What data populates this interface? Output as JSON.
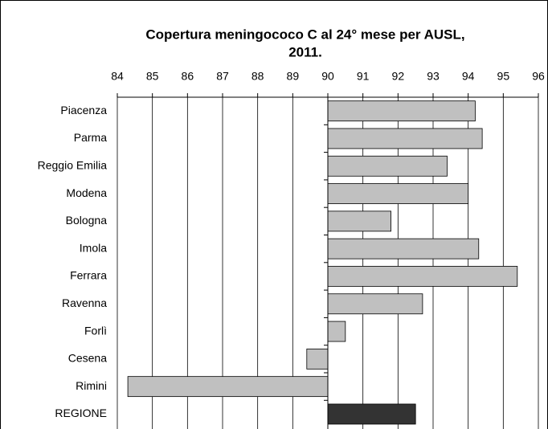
{
  "chart_data": {
    "type": "bar",
    "orientation": "horizontal",
    "title": [
      "Copertura meningococo C al 24° mese per AUSL,",
      "2011."
    ],
    "categories": [
      "Piacenza",
      "Parma",
      "Reggio Emilia",
      "Modena",
      "Bologna",
      "Imola",
      "Ferrara",
      "Ravenna",
      "Forlì",
      "Cesena",
      "Rimini",
      "REGIONE"
    ],
    "values": [
      94.2,
      94.4,
      93.4,
      94.0,
      91.8,
      94.3,
      95.4,
      92.7,
      90.5,
      89.4,
      84.3,
      92.5
    ],
    "colors": [
      "#c0c0c0",
      "#c0c0c0",
      "#c0c0c0",
      "#c0c0c0",
      "#c0c0c0",
      "#c0c0c0",
      "#c0c0c0",
      "#c0c0c0",
      "#c0c0c0",
      "#c0c0c0",
      "#c0c0c0",
      "#333333"
    ],
    "base": 90,
    "xlim": [
      84,
      96
    ],
    "xticks": [
      84,
      85,
      86,
      87,
      88,
      89,
      90,
      91,
      92,
      93,
      94,
      95,
      96
    ],
    "grid": true
  }
}
